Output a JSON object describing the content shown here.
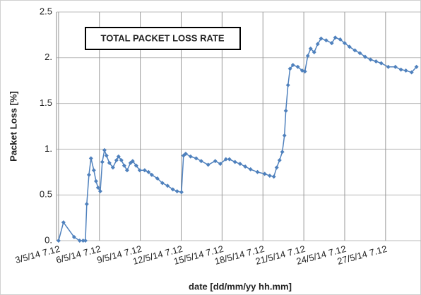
{
  "chart_data": {
    "type": "line",
    "title": "TOTAL PACKET LOSS RATE",
    "x_label": "date  [dd/mm/yy hh.mm]",
    "y_label": "Packet Loss [%]",
    "color": "#4f81bd",
    "grid": true,
    "x": [
      3.0,
      3.36,
      4.14,
      4.55,
      4.8,
      4.97,
      5.07,
      5.23,
      5.38,
      5.59,
      5.75,
      5.9,
      6.06,
      6.21,
      6.37,
      6.52,
      6.73,
      6.99,
      7.25,
      7.4,
      7.61,
      7.82,
      8.03,
      8.28,
      8.44,
      8.7,
      8.96,
      9.32,
      9.6,
      9.84,
      10.25,
      10.62,
      11.0,
      11.39,
      11.7,
      12.02,
      12.17,
      12.33,
      12.69,
      13.1,
      13.47,
      13.98,
      14.5,
      14.87,
      15.28,
      15.54,
      15.95,
      16.32,
      16.7,
      17.09,
      17.6,
      18.13,
      18.5,
      18.8,
      19.01,
      19.22,
      19.42,
      19.58,
      19.68,
      19.84,
      19.99,
      20.2,
      20.56,
      20.88,
      21.08,
      21.29,
      21.5,
      21.76,
      22.02,
      22.27,
      22.64,
      23.05,
      23.31,
      23.67,
      24.0,
      24.35,
      24.75,
      25.12,
      25.5,
      25.9,
      26.3,
      26.68,
      27.2,
      27.72,
      28.13,
      28.49,
      28.91,
      29.27
    ],
    "values": [
      0.0,
      0.2,
      0.04,
      0.0,
      0.0,
      0.0,
      0.4,
      0.72,
      0.9,
      0.77,
      0.65,
      0.58,
      0.54,
      0.86,
      0.99,
      0.93,
      0.85,
      0.8,
      0.88,
      0.92,
      0.88,
      0.82,
      0.77,
      0.85,
      0.87,
      0.82,
      0.77,
      0.77,
      0.75,
      0.72,
      0.68,
      0.63,
      0.6,
      0.56,
      0.54,
      0.53,
      0.93,
      0.95,
      0.92,
      0.9,
      0.87,
      0.83,
      0.87,
      0.84,
      0.89,
      0.89,
      0.86,
      0.84,
      0.81,
      0.78,
      0.75,
      0.73,
      0.71,
      0.7,
      0.8,
      0.88,
      0.97,
      1.15,
      1.42,
      1.7,
      1.88,
      1.92,
      1.9,
      1.86,
      1.85,
      2.02,
      2.1,
      2.06,
      2.15,
      2.21,
      2.19,
      2.16,
      2.22,
      2.2,
      2.16,
      2.12,
      2.08,
      2.05,
      2.01,
      1.98,
      1.96,
      1.94,
      1.9,
      1.9,
      1.87,
      1.86,
      1.84,
      1.9
    ],
    "xlim": [
      2.85,
      29.6
    ],
    "xticks": [
      {
        "value": 3,
        "label": "3/5/14 7.12"
      },
      {
        "value": 6,
        "label": "6/5/14 7.12"
      },
      {
        "value": 9,
        "label": "9/5/14 7.12"
      },
      {
        "value": 12,
        "label": "12/5/14 7.12"
      },
      {
        "value": 15,
        "label": "15/5/14 7.12"
      },
      {
        "value": 18,
        "label": "18/5/14 7.12"
      },
      {
        "value": 21,
        "label": "21/5/14 7.12"
      },
      {
        "value": 24,
        "label": "24/5/14 7.12"
      },
      {
        "value": 27,
        "label": "27/5/14 7.12"
      }
    ],
    "ylim": [
      0,
      2.5
    ],
    "yticks": [
      {
        "value": 0,
        "label": "0."
      },
      0.5,
      {
        "value": 1,
        "label": "1."
      },
      1.5,
      {
        "value": 2,
        "label": "2."
      },
      2.5
    ]
  }
}
